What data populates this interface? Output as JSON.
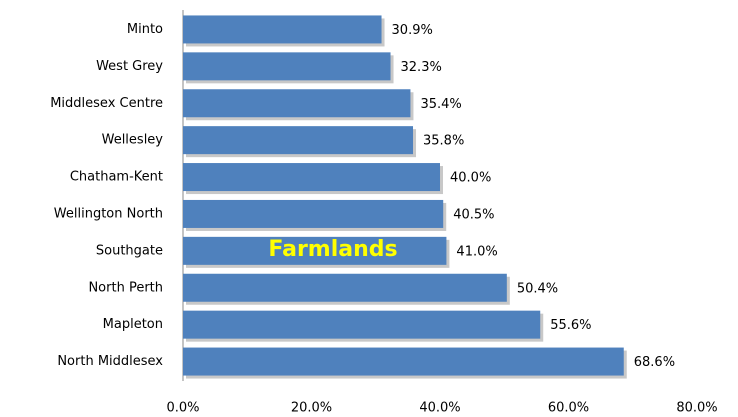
{
  "chart_data": {
    "type": "barh",
    "categories": [
      "Minto",
      "West Grey",
      "Middlesex Centre",
      "Wellesley",
      "Chatham-Kent",
      "Wellington North",
      "Southgate",
      "North Perth",
      "Mapleton",
      "North Middlesex"
    ],
    "values": [
      30.9,
      32.3,
      35.4,
      35.8,
      40.0,
      40.5,
      41.0,
      50.4,
      55.6,
      68.6
    ],
    "value_labels": [
      "30.9%",
      "32.3%",
      "35.4%",
      "35.8%",
      "40.0%",
      "40.5%",
      "41.0%",
      "50.4%",
      "55.6%",
      "68.6%"
    ],
    "color": "#4f81bd",
    "xlim": [
      0,
      80
    ],
    "xticks": [
      {
        "value": 0,
        "label": "0.0%"
      },
      {
        "value": 20,
        "label": "20.0%"
      },
      {
        "value": 40,
        "label": "40.0%"
      },
      {
        "value": 60,
        "label": "60.0%"
      },
      {
        "value": 80,
        "label": "80.0%"
      }
    ],
    "annotation": "Farmlands"
  }
}
